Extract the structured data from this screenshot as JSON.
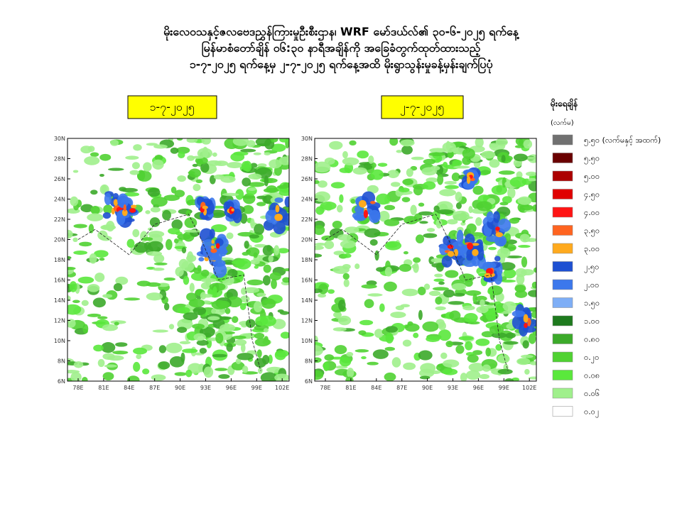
{
  "header": {
    "lines": [
      "မိုးလေဝသနှင့်ဇလဗေဒညွှန်ကြားမှုဦးစီးဌာန၊ WRF မော်ဒယ်လ်၏ ၃၀-၆-၂၀၂၅ ရက်နေ့",
      "မြန်မာစံတော်ချိန် ၀၆:၃၀ နာရီအချိန်ကို အခြေခံတွက်ထုတ်ထားသည့်",
      "၁-၇-၂၀၂၅ ရက်နေ့မှ ၂-၇-၂၀၂၅ ရက်နေ့အထိ မိုးရွာသွန်းမှုခန့်မှန်းချက်ပြပုံ"
    ]
  },
  "panels": [
    {
      "date": "၁-၇-၂၀၂၅"
    },
    {
      "date": "၂-၇-၂၀၂၅"
    }
  ],
  "lat_labels": [
    "30N",
    "28N",
    "26N",
    "24N",
    "22N",
    "20N",
    "18N",
    "16N",
    "14N",
    "12N",
    "10N",
    "8N",
    "6N"
  ],
  "lon_labels": [
    "78E",
    "81E",
    "84E",
    "87E",
    "90E",
    "93E",
    "96E",
    "99E",
    "102E"
  ],
  "legend": {
    "title": "မိုးရေချိန်",
    "unit": "(လက်မ)",
    "items": [
      {
        "label": "၅.၅၀ (လက်မနှင့် အထက်)",
        "color": "#707070"
      },
      {
        "label": "၅.၅၀",
        "color": "#6a0000"
      },
      {
        "label": "၅.၀၀",
        "color": "#ac0000"
      },
      {
        "label": "၄.၅၀",
        "color": "#e00000"
      },
      {
        "label": "၄.၀၀",
        "color": "#ff1414"
      },
      {
        "label": "၃.၅၀",
        "color": "#ff6420"
      },
      {
        "label": "၃.၀၀",
        "color": "#ffaa1e"
      },
      {
        "label": "၂.၅၀",
        "color": "#1e50d2"
      },
      {
        "label": "၂.၀၀",
        "color": "#3c78ec"
      },
      {
        "label": "၁.၅၀",
        "color": "#7eaef6"
      },
      {
        "label": "၁.၀၀",
        "color": "#1e7a1e"
      },
      {
        "label": "၀.၈၀",
        "color": "#3caa2a"
      },
      {
        "label": "၀.၂၀",
        "color": "#50d232"
      },
      {
        "label": "၀.၀၈",
        "color": "#5ae83c"
      },
      {
        "label": "၀.၀၆",
        "color": "#a0f08c"
      },
      {
        "label": "၀.၀၂",
        "color": "#ffffff"
      }
    ]
  }
}
